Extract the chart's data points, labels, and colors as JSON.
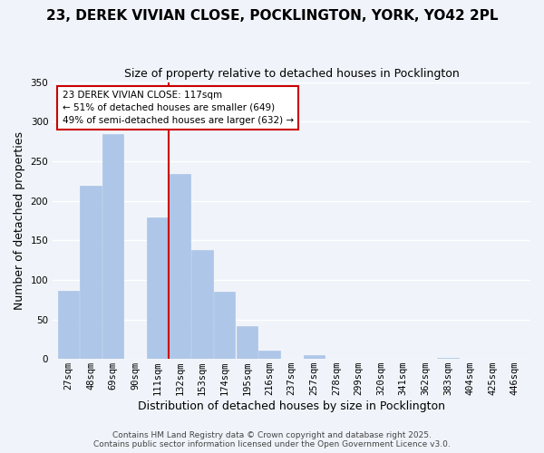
{
  "title": "23, DEREK VIVIAN CLOSE, POCKLINGTON, YORK, YO42 2PL",
  "subtitle": "Size of property relative to detached houses in Pocklington",
  "xlabel": "Distribution of detached houses by size in Pocklington",
  "ylabel": "Number of detached properties",
  "bar_labels": [
    "27sqm",
    "48sqm",
    "69sqm",
    "90sqm",
    "111sqm",
    "132sqm",
    "153sqm",
    "174sqm",
    "195sqm",
    "216sqm",
    "237sqm",
    "257sqm",
    "278sqm",
    "299sqm",
    "320sqm",
    "341sqm",
    "362sqm",
    "383sqm",
    "404sqm",
    "425sqm",
    "446sqm"
  ],
  "bar_values": [
    86,
    219,
    284,
    0,
    179,
    234,
    138,
    85,
    41,
    11,
    0,
    5,
    0,
    0,
    0,
    0,
    0,
    1,
    0,
    0,
    0
  ],
  "bar_color": "#aec6e8",
  "vline_color": "#cc0000",
  "ylim": [
    0,
    350
  ],
  "yticks": [
    0,
    50,
    100,
    150,
    200,
    250,
    300,
    350
  ],
  "annotation_title": "23 DEREK VIVIAN CLOSE: 117sqm",
  "annotation_line1": "← 51% of detached houses are smaller (649)",
  "annotation_line2": "49% of semi-detached houses are larger (632) →",
  "footer1": "Contains HM Land Registry data © Crown copyright and database right 2025.",
  "footer2": "Contains public sector information licensed under the Open Government Licence v3.0.",
  "bg_color": "#f0f4fa",
  "grid_color": "#ffffff",
  "title_fontsize": 11,
  "subtitle_fontsize": 9,
  "axis_label_fontsize": 9,
  "tick_fontsize": 7.5,
  "footer_fontsize": 6.5
}
